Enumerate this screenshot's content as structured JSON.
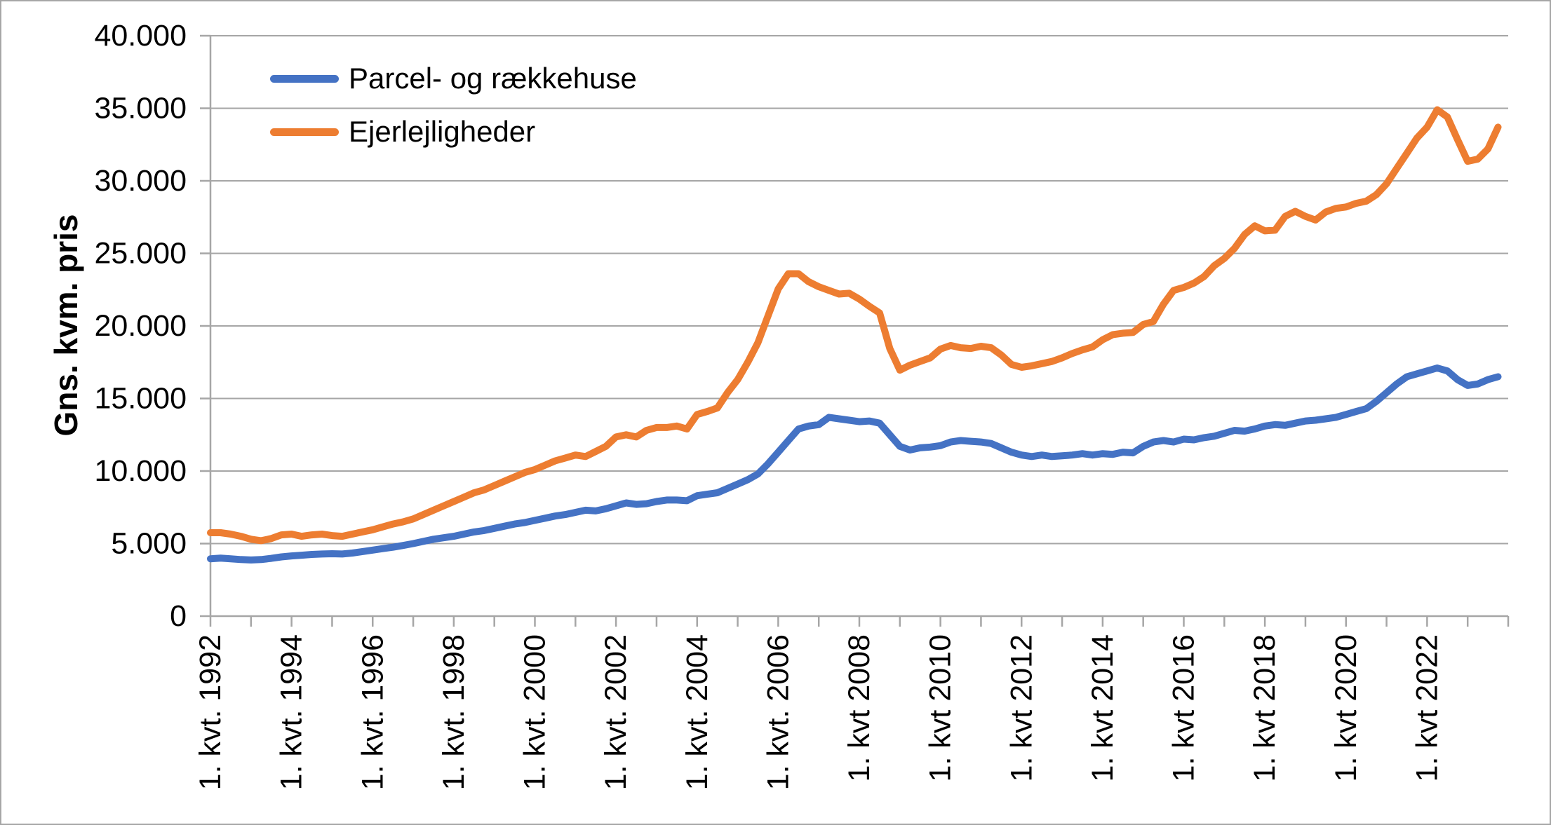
{
  "chart_data": {
    "type": "line",
    "title": "",
    "ylabel": "Gns. kvm. pris",
    "xlabel": "",
    "ylim": [
      0,
      40000
    ],
    "y_tick_step": 5000,
    "y_tick_labels": [
      "0",
      "5.000",
      "10.000",
      "15.000",
      "20.000",
      "25.000",
      "30.000",
      "35.000",
      "40.000"
    ],
    "x_unit": "quarter",
    "x_points_per_year": 4,
    "x_minor_tick_every_n_points": 4,
    "x_label_every_n_points": 8,
    "x_tick_labels": [
      "1. kvt. 1992",
      "1. kvt. 1994",
      "1. kvt. 1996",
      "1. kvt. 1998",
      "1. kvt. 2000",
      "1. kvt. 2002",
      "1. kvt. 2004",
      "1. kvt. 2006",
      "1. kvt 2008",
      "1. kvt 2010",
      "1. kvt 2012",
      "1. kvt 2014",
      "1. kvt 2016",
      "1. kvt 2018",
      "1. kvt 2020",
      "1. kvt 2022"
    ],
    "grid": "horizontal",
    "legend_position": "top-left-inside",
    "colors": {
      "grid": "#a6a6a6",
      "axis": "#a6a6a6",
      "text": "#000000",
      "background": "#ffffff"
    },
    "series": [
      {
        "name": "Parcel- og rækkehuse",
        "color": "#4472C4",
        "values": [
          3950,
          4000,
          3950,
          3900,
          3870,
          3900,
          3980,
          4080,
          4150,
          4200,
          4250,
          4280,
          4300,
          4280,
          4350,
          4450,
          4550,
          4650,
          4750,
          4870,
          5000,
          5150,
          5300,
          5400,
          5500,
          5650,
          5800,
          5900,
          6050,
          6200,
          6350,
          6450,
          6600,
          6750,
          6900,
          7000,
          7150,
          7300,
          7250,
          7400,
          7600,
          7800,
          7700,
          7750,
          7900,
          8000,
          8000,
          7950,
          8300,
          8400,
          8500,
          8800,
          9100,
          9400,
          9800,
          10500,
          11300,
          12100,
          12900,
          13100,
          13200,
          13700,
          13600,
          13500,
          13400,
          13450,
          13300,
          12500,
          11700,
          11450,
          11600,
          11650,
          11750,
          12000,
          12100,
          12050,
          12000,
          11900,
          11600,
          11300,
          11100,
          11000,
          11100,
          11000,
          11050,
          11100,
          11200,
          11100,
          11200,
          11150,
          11300,
          11250,
          11700,
          12000,
          12100,
          12000,
          12200,
          12150,
          12300,
          12400,
          12600,
          12800,
          12750,
          12900,
          13100,
          13200,
          13150,
          13300,
          13450,
          13500,
          13600,
          13700,
          13900,
          14100,
          14300,
          14800,
          15400,
          16000,
          16500,
          16700,
          16900,
          17100,
          16900,
          16300,
          15900,
          16000,
          16300,
          16500
        ]
      },
      {
        "name": "Ejerlejligheder",
        "color": "#ED7D31",
        "values": [
          5750,
          5750,
          5650,
          5500,
          5300,
          5200,
          5350,
          5600,
          5650,
          5500,
          5600,
          5650,
          5550,
          5500,
          5650,
          5800,
          5950,
          6150,
          6350,
          6500,
          6700,
          7000,
          7300,
          7600,
          7900,
          8200,
          8500,
          8700,
          9000,
          9300,
          9600,
          9900,
          10100,
          10400,
          10700,
          10900,
          11100,
          11000,
          11350,
          11700,
          12350,
          12500,
          12350,
          12800,
          13000,
          13000,
          13100,
          12900,
          13900,
          14100,
          14350,
          15400,
          16300,
          17500,
          18850,
          20700,
          22550,
          23600,
          23600,
          23050,
          22700,
          22450,
          22200,
          22250,
          21850,
          21350,
          20900,
          18450,
          16950,
          17300,
          17550,
          17800,
          18400,
          18650,
          18500,
          18450,
          18600,
          18500,
          18000,
          17350,
          17150,
          17250,
          17400,
          17550,
          17800,
          18100,
          18350,
          18550,
          19050,
          19400,
          19500,
          19550,
          20100,
          20300,
          21500,
          22450,
          22650,
          22950,
          23400,
          24150,
          24650,
          25350,
          26300,
          26900,
          26550,
          26600,
          27550,
          27900,
          27550,
          27300,
          27850,
          28100,
          28200,
          28450,
          28600,
          29050,
          29800,
          30850,
          31900,
          32950,
          33700,
          34900,
          34400,
          32850,
          31350,
          31500,
          32200,
          33700
        ]
      }
    ]
  }
}
